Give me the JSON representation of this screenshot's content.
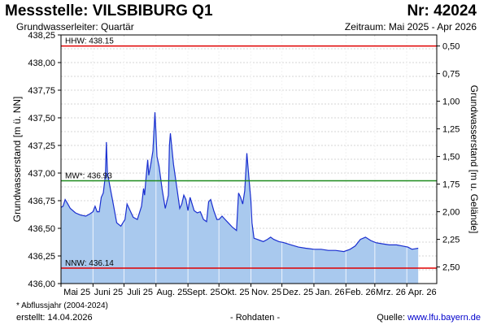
{
  "header": {
    "title": "Messstelle: VILSBIBURG Q1",
    "number": "Nr: 42024",
    "aquifer": "Grundwasserleiter: Quartär",
    "period": "Zeitraum: Mai 2025 - Apr 2026"
  },
  "footer": {
    "footnote": "* Abflussjahr (2004-2024)",
    "created": "erstellt:  14.04.2026",
    "rawdata": "- Rohdaten -",
    "source_prefix": "Quelle: ",
    "source_link": "www.lfu.bayern.de"
  },
  "colors": {
    "fill": "#a9c9ee",
    "line": "#1a2fd0",
    "hhw": "#e00000",
    "nnw": "#e00000",
    "mw": "#1c8a1c",
    "grid": "#c8c8c8"
  },
  "chart_data": {
    "type": "area",
    "xlabel": "",
    "ylabel": "Grundwasserstand [m ü. NN]",
    "ylabel_right": "Grundwasserstand [m u. Gelände]",
    "ylim": [
      436.0,
      438.25
    ],
    "xlim": [
      "2025-05-01",
      "2026-04-30"
    ],
    "yticks_left": [
      "436,00",
      "436,25",
      "436,50",
      "436,75",
      "437,00",
      "437,25",
      "437,50",
      "437,75",
      "438,00",
      "438,25"
    ],
    "yticks_right": [
      "2,50",
      "2,25",
      "2,00",
      "1,75",
      "1,50",
      "1,25",
      "1,00",
      "0,75",
      "0,50"
    ],
    "xticks": [
      {
        "label": "Mai 25",
        "month": "2025-05"
      },
      {
        "label": "Juni 25",
        "month": "2025-06"
      },
      {
        "label": "Juli 25",
        "month": "2025-07"
      },
      {
        "label": "Aug. 25",
        "month": "2025-08"
      },
      {
        "label": "Sept. 25",
        "month": "2025-09"
      },
      {
        "label": "Okt. 25",
        "month": "2025-10"
      },
      {
        "label": "Nov. 25",
        "month": "2025-11"
      },
      {
        "label": "Dez. 25",
        "month": "2025-12"
      },
      {
        "label": "Jan. 26",
        "month": "2026-01"
      },
      {
        "label": "Feb. 26",
        "month": "2026-02"
      },
      {
        "label": "Mrz. 26",
        "month": "2026-03"
      },
      {
        "label": "Apr. 26",
        "month": "2026-04"
      }
    ],
    "reference_lines": [
      {
        "label": "HHW: 438.15",
        "value": 438.15,
        "color": "#e00000"
      },
      {
        "label": "MW*: 436.93",
        "value": 436.93,
        "color": "#1c8a1c"
      },
      {
        "label": "NNW: 436.14",
        "value": 436.14,
        "color": "#e00000"
      }
    ],
    "grid": true,
    "series": [
      {
        "x": [
          "2025-05-01",
          "2025-05-03",
          "2025-05-05",
          "2025-05-07",
          "2025-05-10",
          "2025-05-15",
          "2025-05-20",
          "2025-05-25",
          "2025-05-29",
          "2025-06-01",
          "2025-06-03",
          "2025-06-05",
          "2025-06-07",
          "2025-06-09",
          "2025-06-11",
          "2025-06-13",
          "2025-06-14",
          "2025-06-15",
          "2025-06-16",
          "2025-06-18",
          "2025-06-20",
          "2025-06-24",
          "2025-06-28",
          "2025-07-02",
          "2025-07-04",
          "2025-07-07",
          "2025-07-10",
          "2025-07-14",
          "2025-07-18",
          "2025-07-20",
          "2025-07-21",
          "2025-07-22",
          "2025-07-24",
          "2025-07-25",
          "2025-07-27",
          "2025-07-29",
          "2025-07-31",
          "2025-08-01",
          "2025-08-02",
          "2025-08-04",
          "2025-08-07",
          "2025-08-10",
          "2025-08-13",
          "2025-08-14",
          "2025-08-15",
          "2025-08-18",
          "2025-08-21",
          "2025-08-24",
          "2025-08-26",
          "2025-08-28",
          "2025-08-30",
          "2025-09-01",
          "2025-09-03",
          "2025-09-05",
          "2025-09-07",
          "2025-09-10",
          "2025-09-13",
          "2025-09-16",
          "2025-09-19",
          "2025-09-21",
          "2025-09-23",
          "2025-09-26",
          "2025-09-29",
          "2025-10-01",
          "2025-10-04",
          "2025-10-07",
          "2025-10-10",
          "2025-10-14",
          "2025-10-18",
          "2025-10-20",
          "2025-10-22",
          "2025-10-24",
          "2025-10-26",
          "2025-10-28",
          "2025-10-30",
          "2025-10-31",
          "2025-11-01",
          "2025-11-02",
          "2025-11-04",
          "2025-11-07",
          "2025-11-10",
          "2025-11-13",
          "2025-11-17",
          "2025-11-20",
          "2025-11-23",
          "2025-11-28",
          "2025-12-03",
          "2025-12-10",
          "2025-12-17",
          "2025-12-24",
          "2026-01-01",
          "2026-01-08",
          "2026-01-15",
          "2026-01-22",
          "2026-01-30",
          "2026-02-05",
          "2026-02-10",
          "2026-02-15",
          "2026-02-20",
          "2026-02-25",
          "2026-03-02",
          "2026-03-08",
          "2026-03-15",
          "2026-03-22",
          "2026-03-28",
          "2026-04-02",
          "2026-04-06",
          "2026-04-12"
        ],
        "values": [
          436.69,
          436.7,
          436.76,
          436.73,
          436.68,
          436.64,
          436.62,
          436.61,
          436.63,
          436.65,
          436.7,
          436.65,
          436.65,
          436.78,
          436.82,
          436.98,
          437.28,
          437.0,
          436.95,
          436.85,
          436.75,
          436.55,
          436.52,
          436.58,
          436.72,
          436.66,
          436.6,
          436.58,
          436.7,
          436.86,
          436.8,
          436.92,
          437.12,
          436.98,
          437.08,
          437.2,
          437.55,
          437.36,
          437.15,
          437.06,
          436.85,
          436.68,
          436.8,
          437.25,
          437.36,
          437.08,
          436.88,
          436.68,
          436.72,
          436.8,
          436.76,
          436.66,
          436.78,
          436.72,
          436.66,
          436.64,
          436.65,
          436.58,
          436.56,
          436.74,
          436.76,
          436.66,
          436.58,
          436.58,
          436.61,
          436.58,
          436.55,
          436.51,
          436.48,
          436.82,
          436.78,
          436.72,
          436.84,
          437.18,
          436.96,
          436.85,
          436.75,
          436.55,
          436.41,
          436.4,
          436.39,
          436.38,
          436.4,
          436.42,
          436.4,
          436.38,
          436.37,
          436.35,
          436.33,
          436.32,
          436.31,
          436.31,
          436.3,
          436.3,
          436.29,
          436.31,
          436.34,
          436.4,
          436.42,
          436.39,
          436.37,
          436.36,
          436.35,
          436.35,
          436.34,
          436.33,
          436.31,
          436.32
        ]
      }
    ]
  }
}
